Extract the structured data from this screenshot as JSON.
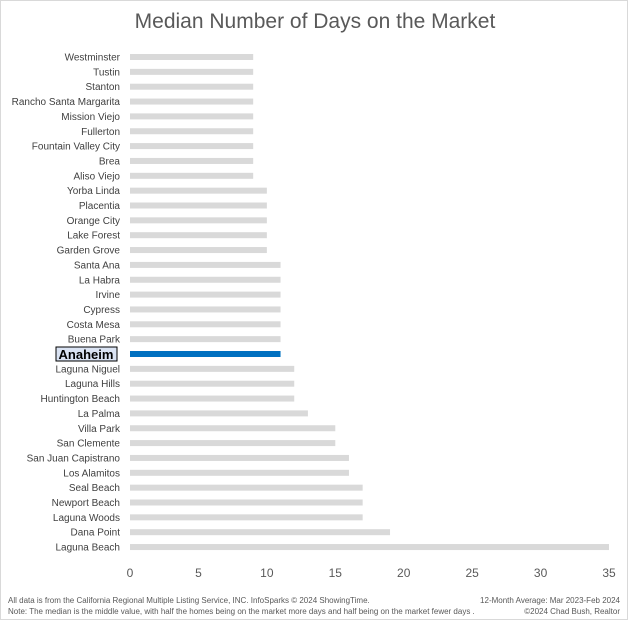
{
  "chart_data": {
    "type": "bar",
    "orientation": "horizontal",
    "title": "Median Number of Days on the Market",
    "highlight": "Anaheim",
    "categories": [
      "Westminster",
      "Tustin",
      "Stanton",
      "Rancho Santa Margarita",
      "Mission Viejo",
      "Fullerton",
      "Fountain Valley City",
      "Brea",
      "Aliso Viejo",
      "Yorba Linda",
      "Placentia",
      "Orange City",
      "Lake Forest",
      "Garden Grove",
      "Santa Ana",
      "La Habra",
      "Irvine",
      "Cypress",
      "Costa Mesa",
      "Buena Park",
      "Anaheim",
      "Laguna Niguel",
      "Laguna Hills",
      "Huntington Beach",
      "La Palma",
      "Villa Park",
      "San Clemente",
      "San Juan Capistrano",
      "Los Alamitos",
      "Seal Beach",
      "Newport Beach",
      "Laguna Woods",
      "Dana Point",
      "Laguna Beach"
    ],
    "values": [
      9,
      9,
      9,
      9,
      9,
      9,
      9,
      9,
      9,
      10,
      10,
      10,
      10,
      10,
      11,
      11,
      11,
      11,
      11,
      11,
      11,
      12,
      12,
      12,
      13,
      15,
      15,
      16,
      16,
      17,
      17,
      17,
      19,
      35
    ],
    "xlim": [
      0,
      35
    ],
    "xticks": [
      0,
      5,
      10,
      15,
      20,
      25,
      30,
      35
    ],
    "grid": false,
    "colors": {
      "bar": "#d9d9d9",
      "highlight_bar": "#0070c0",
      "highlight_box": "#dae3f3",
      "text": "#404040"
    }
  },
  "footer": {
    "source": "All data is from the California Regional Multiple Listing Service, INC. InfoSparks © 2024 ShowingTime.",
    "note": "Note: The median is the middle value, with half the homes being on the market more days and half being on the market fewer days .",
    "period": "12-Month Average: Mar 2023-Feb 2024",
    "credit": "©2024 Chad Bush, Realtor"
  }
}
